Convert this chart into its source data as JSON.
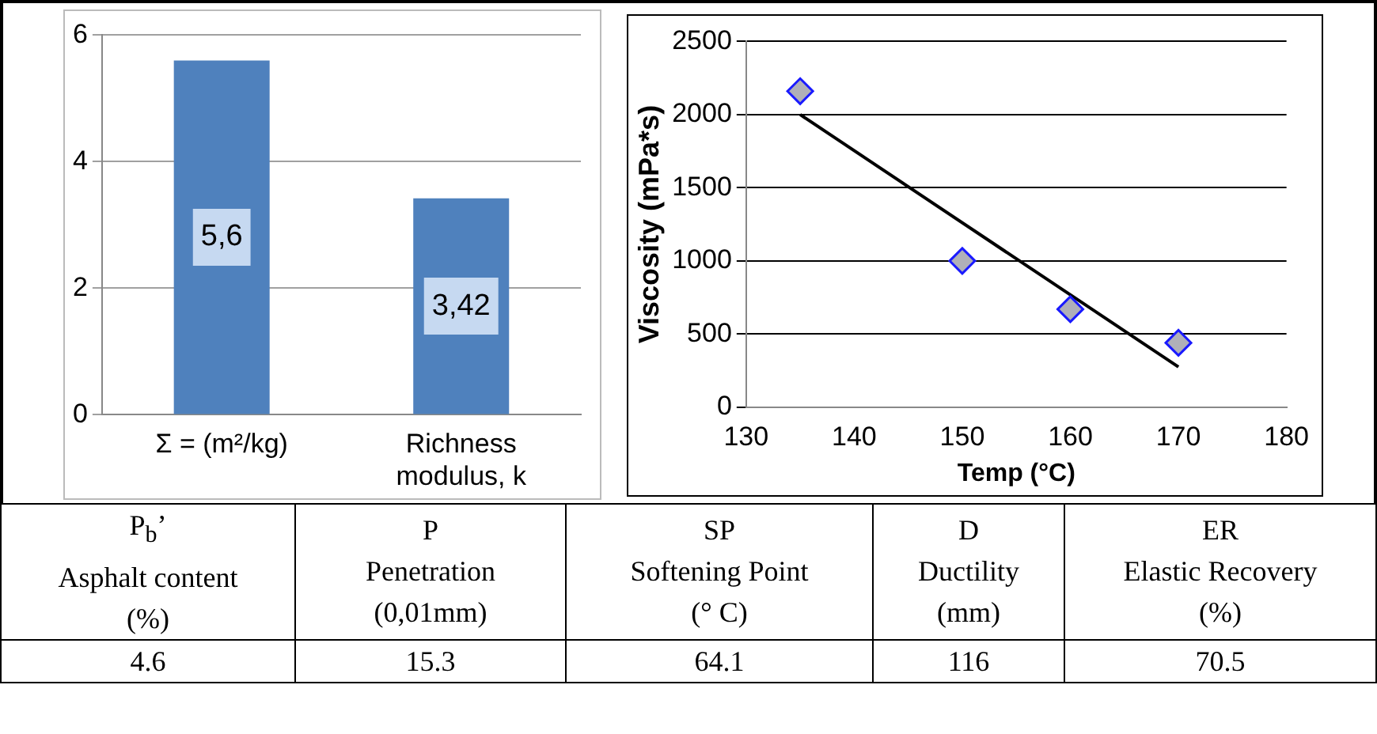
{
  "chart_data": [
    {
      "type": "bar",
      "categories": [
        "Σ = (m²/kg)",
        "Richness modulus, k"
      ],
      "values": [
        5.6,
        3.42
      ],
      "value_labels": [
        "5,6",
        "3,42"
      ],
      "color": "#4f81bd",
      "ylim": [
        0,
        6
      ],
      "yticks": [
        0,
        2,
        4,
        6
      ],
      "grid": "y"
    },
    {
      "type": "scatter",
      "xlabel": "Temp (°C)",
      "ylabel": "Viscosity (mPa*s)",
      "xlim": [
        130,
        180
      ],
      "xticks": [
        130,
        140,
        150,
        160,
        170,
        180
      ],
      "ylim": [
        0,
        2500
      ],
      "yticks": [
        0,
        500,
        1000,
        1500,
        2000,
        2500
      ],
      "grid": "y",
      "marker": "diamond",
      "series": [
        {
          "color": "#b0b0b8",
          "x": [
            135,
            150,
            160,
            170
          ],
          "values": [
            2160,
            1000,
            670,
            440
          ]
        },
        {
          "type": "line",
          "marker": "none",
          "color": "#000000",
          "x": [
            135,
            170
          ],
          "values": [
            2000,
            275
          ]
        }
      ]
    },
    {
      "type": "other",
      "categories": [
        "P$_{b}$’\nAsphalt content\n(%)",
        "P\nPenetration\n(0,01mm)",
        "SP\nSoftening Point\n(° C)",
        "D\nDuctility\n(mm)",
        "ER\nElastic Recovery\n(%)"
      ],
      "values": [
        4.6,
        15.3,
        64.1,
        116,
        70.5
      ],
      "data_labels": true
    }
  ]
}
